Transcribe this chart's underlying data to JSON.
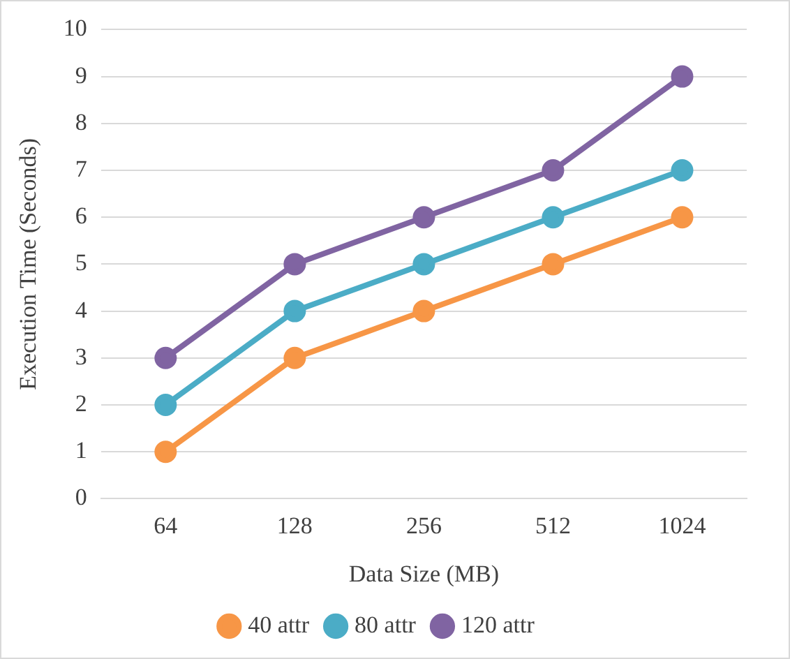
{
  "chart_data": {
    "type": "line",
    "xlabel": "Data Size (MB)",
    "ylabel": "Execution Time (Seconds)",
    "categories": [
      "64",
      "128",
      "256",
      "512",
      "1024"
    ],
    "series": [
      {
        "name": "40 attr",
        "color": "#f79646",
        "values": [
          1,
          3,
          4,
          5,
          6
        ]
      },
      {
        "name": "80 attr",
        "color": "#4bacc6",
        "values": [
          2,
          4,
          5,
          6,
          7
        ]
      },
      {
        "name": "120 attr",
        "color": "#8064a2",
        "values": [
          3,
          5,
          6,
          7,
          9
        ]
      }
    ],
    "ylim": [
      0,
      10
    ],
    "yticks": [
      0,
      1,
      2,
      3,
      4,
      5,
      6,
      7,
      8,
      9,
      10
    ],
    "grid": "y",
    "legend": "bottom",
    "marker": "circle",
    "line_style": "solid"
  }
}
